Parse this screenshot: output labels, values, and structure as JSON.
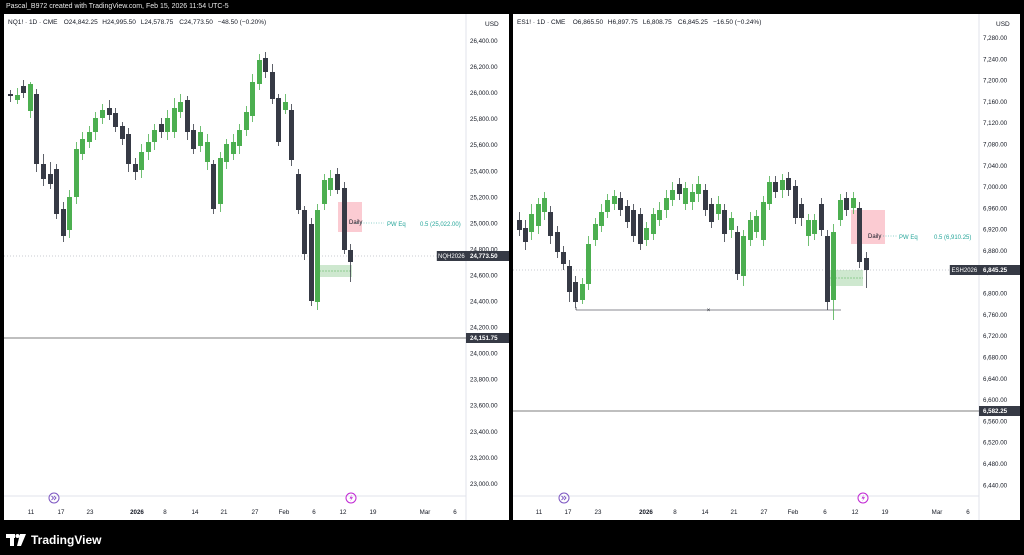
{
  "header": {
    "text": "Pascal_B972 created with TradingView.com, Feb 15, 2026 11:54 UTC-5"
  },
  "footer": {
    "brand": "TradingView",
    "logo_icon": "tradingview-logo-icon"
  },
  "charts": [
    {
      "id": "left",
      "legend": {
        "symbol": "NQ1! · 1D · CME",
        "open": "O24,842.25",
        "high": "H24,995.50",
        "low": "L24,578.75",
        "close": "C24,773.50",
        "change": "−48.50 (−0.20%)"
      },
      "currency": "USD",
      "price_labels": [
        "26,400.00",
        "26,200.00",
        "26,000.00",
        "25,800.00",
        "25,600.00",
        "25,400.00",
        "25,200.00",
        "25,000.00",
        "24,800.00",
        "24,600.00",
        "24,400.00",
        "24,200.00",
        "24,000.00",
        "23,800.00",
        "23,600.00",
        "23,400.00",
        "23,200.00",
        "23,000.00"
      ],
      "date_labels": [
        "11",
        "17",
        "23",
        "2026",
        "8",
        "14",
        "21",
        "27",
        "Feb",
        "6",
        "12",
        "19",
        "Mar",
        "6"
      ],
      "bold_date_labels": [
        "2026"
      ],
      "price_tag": {
        "symbol": "NQH2026",
        "value": "24,773.50"
      },
      "level_tag": {
        "value": "24,151.75"
      },
      "daily_label": "Daily",
      "pw_label": "PW Eq",
      "fib_label": "0.5 (25,022.00)",
      "icons": [
        "goto-realtime-icon",
        "lightning-icon"
      ]
    },
    {
      "id": "right",
      "legend": {
        "symbol": "ES1! · 1D · CME",
        "open": "O6,865.50",
        "high": "H6,897.75",
        "low": "L6,808.75",
        "close": "C6,845.25",
        "change": "−16.50 (−0.24%)"
      },
      "currency": "USD",
      "price_labels": [
        "7,280.00",
        "7,240.00",
        "7,200.00",
        "7,160.00",
        "7,120.00",
        "7,080.00",
        "7,040.00",
        "7,000.00",
        "6,960.00",
        "6,920.00",
        "6,880.00",
        "6,840.00",
        "6,800.00",
        "6,760.00",
        "6,720.00",
        "6,680.00",
        "6,640.00",
        "6,600.00",
        "6,560.00",
        "6,520.00",
        "6,480.00",
        "6,440.00"
      ],
      "date_labels": [
        "11",
        "17",
        "23",
        "2026",
        "8",
        "14",
        "21",
        "27",
        "Feb",
        "6",
        "12",
        "19",
        "Mar",
        "6"
      ],
      "bold_date_labels": [
        "2026"
      ],
      "price_tag": {
        "symbol": "ESH2026",
        "value": "6,845.25"
      },
      "level_tag": {
        "value": "6,582.25"
      },
      "daily_label": "Daily",
      "pw_label": "PW Eq",
      "fib_label": "0.5 (6,910.25)",
      "icons": [
        "goto-realtime-icon",
        "lightning-icon"
      ]
    }
  ],
  "colors": {
    "up": "#4caf50",
    "down": "#363a45",
    "axis_text": "#131722",
    "grid": "#e0e3eb",
    "zone_red": "#f7a1ad",
    "zone_green": "#a5d6a7",
    "fib_text": "#26a69a",
    "icon_purple": "#7e57c2"
  }
}
